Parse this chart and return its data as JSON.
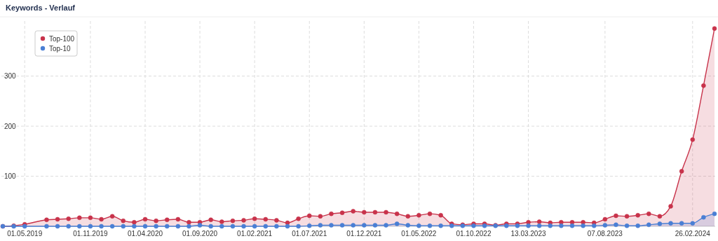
{
  "chart_data": {
    "type": "area",
    "title": "Keywords - Verlauf",
    "categories": [
      null,
      null,
      "01.05.2019",
      null,
      null,
      null,
      null,
      null,
      "01.11.2019",
      null,
      null,
      null,
      null,
      "01.04.2020",
      null,
      null,
      null,
      null,
      "01.09.2020",
      null,
      null,
      null,
      null,
      "01.02.2021",
      null,
      null,
      null,
      null,
      "01.07.2021",
      null,
      null,
      null,
      null,
      "01.12.2021",
      null,
      null,
      null,
      null,
      "01.05.2022",
      null,
      null,
      null,
      null,
      "01.10.2022",
      null,
      null,
      null,
      null,
      "13.03.2023",
      null,
      null,
      null,
      null,
      null,
      null,
      "07.08.2023",
      null,
      null,
      null,
      null,
      null,
      null,
      null,
      "26.02.2024",
      null,
      null
    ],
    "series": [
      {
        "name": "Top-100",
        "color": "#c8334b",
        "values": [
          0,
          1,
          4,
          null,
          13,
          14,
          15,
          17,
          17,
          14,
          20,
          11,
          8,
          14,
          11,
          13,
          14,
          8,
          8,
          13,
          9,
          11,
          12,
          15,
          14,
          12,
          7,
          15,
          21,
          20,
          25,
          27,
          30,
          28,
          28,
          28,
          25,
          20,
          22,
          25,
          22,
          5,
          3,
          5,
          5,
          2,
          5,
          5,
          8,
          9,
          7,
          8,
          8,
          8,
          7,
          14,
          21,
          20,
          22,
          25,
          20,
          40,
          110,
          173,
          281,
          395
        ]
      },
      {
        "name": "Top-10",
        "color": "#4a7fd4",
        "values": [
          0,
          0,
          0,
          null,
          0,
          0,
          0,
          0,
          0,
          0,
          0,
          0,
          0,
          0,
          0,
          0,
          0,
          0,
          2,
          0,
          0,
          0,
          0,
          0,
          0,
          0,
          0,
          0,
          1,
          2,
          2,
          2,
          2,
          2,
          2,
          2,
          5,
          2,
          1,
          1,
          1,
          1,
          1,
          1,
          1,
          1,
          1,
          1,
          1,
          1,
          1,
          1,
          1,
          1,
          1,
          2,
          3,
          1,
          1,
          3,
          5,
          6,
          6,
          6,
          18,
          25
        ]
      }
    ],
    "ylim": [
      0,
      410
    ],
    "yticks": [
      100,
      200,
      300
    ],
    "grid": true,
    "legend": "top left",
    "marker": "circle",
    "tick_labels": "xy"
  }
}
